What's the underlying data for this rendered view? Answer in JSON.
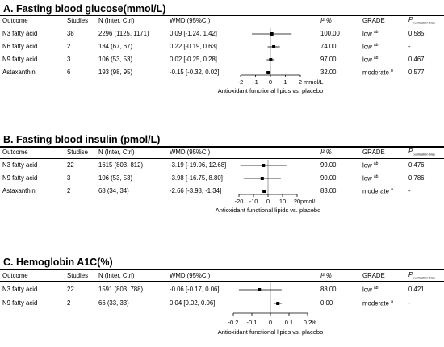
{
  "panels": [
    {
      "title": "A. Fasting blood glucose(mmol/L)",
      "headers": {
        "outcome": "Outcome",
        "studies": "Studies",
        "n": "N (Inter, Ctrl)",
        "wmd": "WMD (95%CI)",
        "i2": "I²,%",
        "grade": "GRADE",
        "p_main": "P",
        "p_sub": "publication bias"
      },
      "rows": [
        {
          "outcome": "N3 fatty acid",
          "studies": "38",
          "n": "2296 (1125, 1171)",
          "wmd": "0.09 [-1.24, 1.42]",
          "i2": "100.00",
          "grade": "low",
          "grade_sup": "ab",
          "p": "0.585"
        },
        {
          "outcome": "N6 fatty acid",
          "studies": "2",
          "n": "134 (67, 67)",
          "wmd": "0.22 [-0.19, 0.63]",
          "i2": "74.00",
          "grade": "low",
          "grade_sup": "ab",
          "p": "-"
        },
        {
          "outcome": "N9 fatty acid",
          "studies": "3",
          "n": "106 (53, 53)",
          "wmd": "0.02 [-0.25, 0.28]",
          "i2": "97.00",
          "grade": "low",
          "grade_sup": "ab",
          "p": "0.467"
        },
        {
          "outcome": "Astaxanthin",
          "studies": "6",
          "n": "193 (98, 95)",
          "wmd": "-0.15 [-0.32, 0.02]",
          "i2": "32.00",
          "grade": "moderate",
          "grade_sup": "b",
          "p": "0.577"
        }
      ],
      "axis_ticks": [
        "-2",
        "-1",
        "0",
        "1",
        "2"
      ],
      "axis_unit": "mmol/L",
      "axis_label": "Antioxidant functional lipids vs. placebo"
    },
    {
      "title": "B. Fasting blood insulin (pmol/L)",
      "headers": {
        "outcome": "Outcome",
        "studies": "Studise",
        "n": "N (Inter, Ctrl)",
        "wmd": "WMD (95%CI)",
        "i2": "I²,%",
        "grade": "GRADE",
        "p_main": "P",
        "p_sub": "publication bias"
      },
      "rows": [
        {
          "outcome": "N3 fatty acid",
          "studies": "22",
          "n": "1615 (803, 812)",
          "wmd": "-3.19 [-19.06, 12.68]",
          "i2": "99.00",
          "grade": "low",
          "grade_sup": "ab",
          "p": "0.476"
        },
        {
          "outcome": "N9 fatty acid",
          "studies": "3",
          "n": "106 (53, 53)",
          "wmd": "-3.98 [-16.75, 8.80]",
          "i2": "90.00",
          "grade": "low",
          "grade_sup": "ab",
          "p": "0.786"
        },
        {
          "outcome": "Astaxanthin",
          "studies": "2",
          "n": "68 (34, 34)",
          "wmd": "-2.66 [-3.98, -1.34]",
          "i2": "83.00",
          "grade": "moderate",
          "grade_sup": "a",
          "p": "-"
        }
      ],
      "axis_ticks": [
        "-20",
        "-10",
        "0",
        "10",
        "20"
      ],
      "axis_unit": "pmol/L",
      "axis_label": "Antioxidant functional lipids vs. placebo"
    },
    {
      "title": "C. Hemoglobin A1C(%)",
      "headers": {
        "outcome": "Outcome",
        "studies": "Studies",
        "n": "N (Inter, Ctrl)",
        "wmd": "WMD (95%CI)",
        "i2": "I²,%",
        "grade": "GRADE",
        "p_main": "P",
        "p_sub": "publication bias"
      },
      "rows": [
        {
          "outcome": "N3 fatty acid",
          "studies": "22",
          "n": "1591 (803, 788)",
          "wmd": "-0.06 [-0.17, 0.06]",
          "i2": "88.00",
          "grade": "low",
          "grade_sup": "ab",
          "p": "0.421"
        },
        {
          "outcome": "N9 fatty acid",
          "studies": "2",
          "n": "66 (33, 33)",
          "wmd": "0.04 [0.02, 0.06]",
          "i2": "0.00",
          "grade": "moderate",
          "grade_sup": "a",
          "p": "-"
        }
      ],
      "axis_ticks": [
        "-0.2",
        "-0.1",
        "0",
        "0.1",
        "0.2"
      ],
      "axis_unit": "%",
      "axis_label": "Antioxidant functional lipids vs. placebo"
    }
  ],
  "chart_data": [
    {
      "type": "forest",
      "title": "A. Fasting blood glucose(mmol/L)",
      "xlim": [
        -2,
        2
      ],
      "xticks": [
        -2,
        -1,
        0,
        1,
        2
      ],
      "xunit": "mmol/L",
      "xlabel": "Antioxidant functional lipids vs. placebo",
      "categories": [
        "N3 fatty acid",
        "N6 fatty acid",
        "N9 fatty acid",
        "Astaxanthin"
      ],
      "estimate": [
        0.09,
        0.22,
        0.02,
        -0.15
      ],
      "lower": [
        -1.24,
        -0.19,
        -0.25,
        -0.32
      ],
      "upper": [
        1.42,
        0.63,
        0.28,
        0.02
      ]
    },
    {
      "type": "forest",
      "title": "B. Fasting blood insulin (pmol/L)",
      "xlim": [
        -20,
        20
      ],
      "xticks": [
        -20,
        -10,
        0,
        10,
        20
      ],
      "xunit": "pmol/L",
      "xlabel": "Antioxidant functional lipids vs. placebo",
      "categories": [
        "N3 fatty acid",
        "N9 fatty acid",
        "Astaxanthin"
      ],
      "estimate": [
        -3.19,
        -3.98,
        -2.66
      ],
      "lower": [
        -19.06,
        -16.75,
        -3.98
      ],
      "upper": [
        12.68,
        8.8,
        -1.34
      ]
    },
    {
      "type": "forest",
      "title": "C. Hemoglobin A1C(%)",
      "xlim": [
        -0.2,
        0.2
      ],
      "xticks": [
        -0.2,
        -0.1,
        0,
        0.1,
        0.2
      ],
      "xunit": "%",
      "xlabel": "Antioxidant functional lipids vs. placebo",
      "categories": [
        "N3 fatty acid",
        "N9 fatty acid"
      ],
      "estimate": [
        -0.06,
        0.04
      ],
      "lower": [
        -0.17,
        0.02
      ],
      "upper": [
        0.06,
        0.06
      ]
    }
  ]
}
